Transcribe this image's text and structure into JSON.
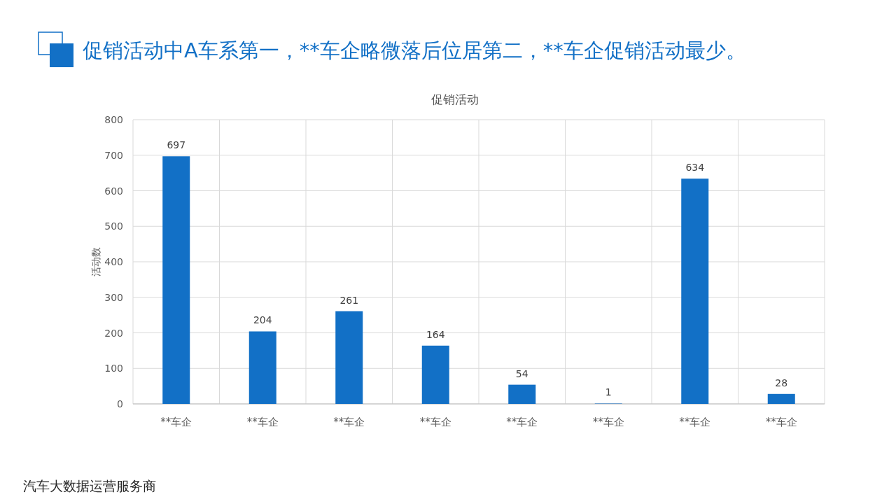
{
  "chart_data": {
    "type": "bar",
    "title": "促销活动中A车系第一，**车企略微落后位居第二，**车企促销活动最少。",
    "subtitle": "促销活动",
    "ylabel": "活动数",
    "categories": [
      "**车企",
      "**车企",
      "**车企",
      "**车企",
      "**车企",
      "**车企",
      "**车企",
      "**车企"
    ],
    "values": [
      697,
      204,
      261,
      164,
      54,
      1,
      634,
      28
    ],
    "color": "#1270c6",
    "ylim": [
      0,
      800
    ],
    "yticks": [
      0,
      100,
      200,
      300,
      400,
      500,
      600,
      700,
      800
    ],
    "grid": true,
    "data_labels": true,
    "annotations": [
      "汽车大数据运营服务商"
    ]
  }
}
